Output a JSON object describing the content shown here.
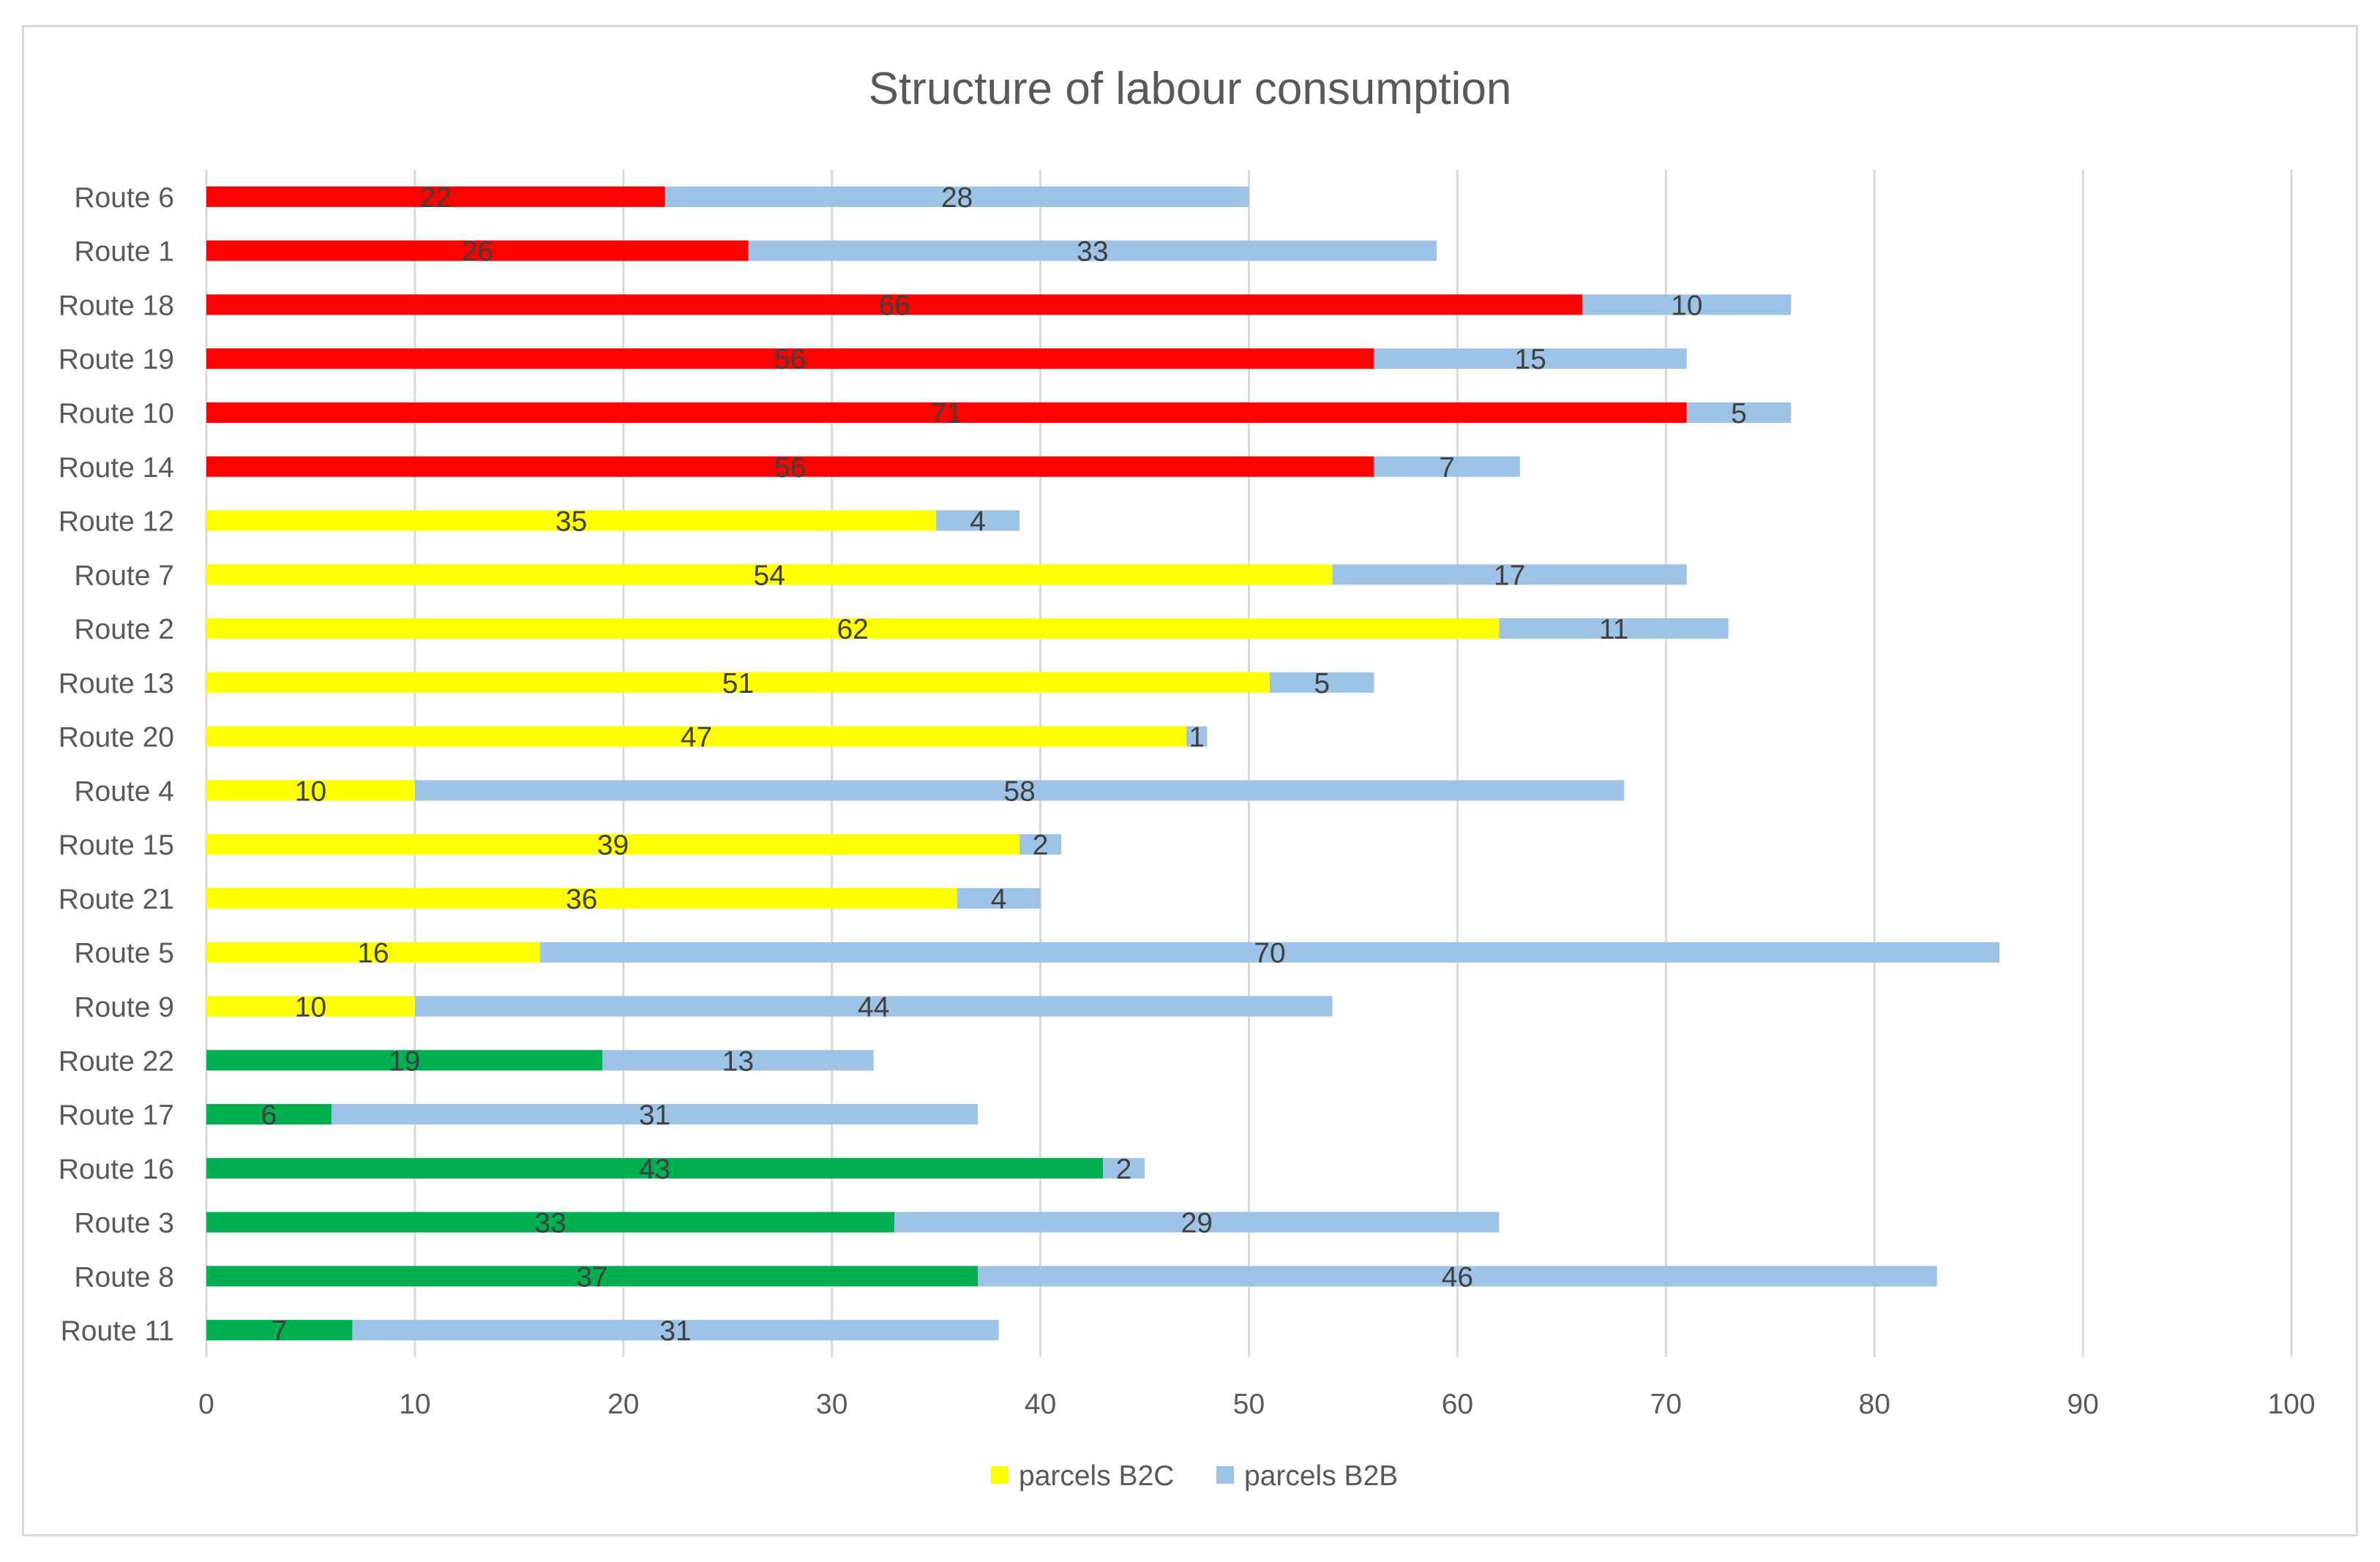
{
  "chart_data": {
    "type": "bar",
    "orientation": "horizontal",
    "stacked": true,
    "title": "Structure of  labour consumption",
    "xlabel": "",
    "ylabel": "",
    "xlim": [
      0,
      100
    ],
    "x_ticks": [
      0,
      10,
      20,
      30,
      40,
      50,
      60,
      70,
      80,
      90,
      100
    ],
    "grid": "vertical",
    "legend_position": "bottom",
    "categories": [
      "Route 6",
      "Route 1",
      "Route 18",
      "Route 19",
      "Route 10",
      "Route 14",
      "Route 12",
      "Route 7",
      "Route 2",
      "Route 13",
      "Route 20",
      "Route 4",
      "Route 15",
      "Route 21",
      "Route 5",
      "Route 9",
      "Route 22",
      "Route 17",
      "Route 16",
      "Route 3",
      "Route 8",
      "Route 11"
    ],
    "b2c_colors": [
      "#ff0000",
      "#ff0000",
      "#ff0000",
      "#ff0000",
      "#ff0000",
      "#ff0000",
      "#ffff00",
      "#ffff00",
      "#ffff00",
      "#ffff00",
      "#ffff00",
      "#ffff00",
      "#ffff00",
      "#ffff00",
      "#ffff00",
      "#ffff00",
      "#00b050",
      "#00b050",
      "#00b050",
      "#00b050",
      "#00b050",
      "#00b050"
    ],
    "series": [
      {
        "name": "parcels B2C",
        "color": "#ffff00",
        "values": [
          22,
          26,
          66,
          56,
          71,
          56,
          35,
          54,
          62,
          51,
          47,
          10,
          39,
          36,
          16,
          10,
          19,
          6,
          43,
          33,
          37,
          7
        ]
      },
      {
        "name": "parcels B2B",
        "color": "#9dc3e6",
        "values": [
          28,
          33,
          10,
          15,
          5,
          7,
          4,
          17,
          11,
          5,
          1,
          58,
          2,
          4,
          70,
          44,
          13,
          31,
          2,
          29,
          46,
          31
        ]
      }
    ],
    "gridline_color": "#d9d9d9"
  }
}
